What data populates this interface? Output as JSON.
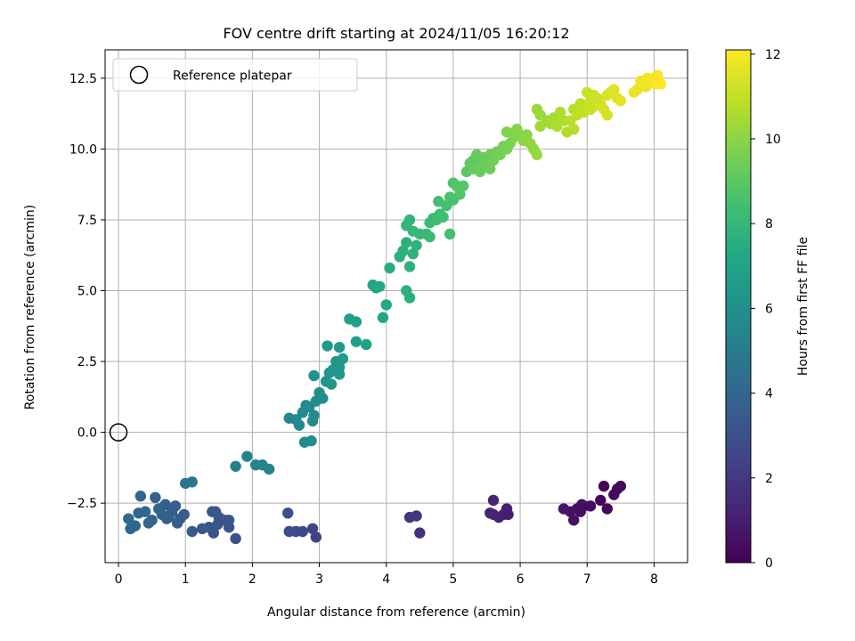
{
  "chart_data": {
    "type": "scatter",
    "title": "FOV centre drift starting at 2024/11/05 16:20:12",
    "xlabel": "Angular distance from reference (arcmin)",
    "ylabel": "Rotation from reference (arcmin)",
    "xlim": [
      -0.2,
      8.5
    ],
    "ylim": [
      -4.6,
      13.5
    ],
    "xticks": [
      0,
      1,
      2,
      3,
      4,
      5,
      6,
      7,
      8
    ],
    "xtick_labels": [
      "0",
      "1",
      "2",
      "3",
      "4",
      "5",
      "6",
      "7",
      "8"
    ],
    "yticks": [
      -2.5,
      0.0,
      2.5,
      5.0,
      7.5,
      10.0,
      12.5
    ],
    "ytick_labels": [
      "−2.5",
      "0.0",
      "2.5",
      "5.0",
      "7.5",
      "10.0",
      "12.5"
    ],
    "grid": true,
    "legend": {
      "position": "top-left",
      "entries": [
        "Reference platepar"
      ]
    },
    "colorbar": {
      "label": "Hours from first FF file",
      "colormap": "viridis",
      "range": [
        0,
        12.1
      ],
      "ticks": [
        0,
        2,
        4,
        6,
        8,
        10,
        12
      ],
      "tick_labels": [
        "0",
        "2",
        "4",
        "6",
        "8",
        "10",
        "12"
      ]
    },
    "reference_point": {
      "x": 0,
      "y": 0
    },
    "points": [
      {
        "x": 7.2,
        "y": -2.4,
        "c": 0.1
      },
      {
        "x": 7.3,
        "y": -2.7,
        "c": 0.2
      },
      {
        "x": 7.25,
        "y": -1.9,
        "c": 0.2
      },
      {
        "x": 7.45,
        "y": -2.0,
        "c": 0.3
      },
      {
        "x": 7.5,
        "y": -1.9,
        "c": 0.3
      },
      {
        "x": 7.4,
        "y": -2.2,
        "c": 0.3
      },
      {
        "x": 6.95,
        "y": -2.6,
        "c": 0.4
      },
      {
        "x": 6.9,
        "y": -2.8,
        "c": 0.5
      },
      {
        "x": 6.85,
        "y": -2.7,
        "c": 0.5
      },
      {
        "x": 6.8,
        "y": -3.1,
        "c": 0.6
      },
      {
        "x": 6.75,
        "y": -2.8,
        "c": 0.6
      },
      {
        "x": 6.65,
        "y": -2.7,
        "c": 0.7
      },
      {
        "x": 6.92,
        "y": -2.55,
        "c": 0.5
      },
      {
        "x": 7.05,
        "y": -2.6,
        "c": 0.4
      },
      {
        "x": 5.8,
        "y": -2.7,
        "c": 1.0
      },
      {
        "x": 5.75,
        "y": -2.9,
        "c": 1.1
      },
      {
        "x": 5.68,
        "y": -3.0,
        "c": 1.1
      },
      {
        "x": 5.6,
        "y": -2.9,
        "c": 1.2
      },
      {
        "x": 5.55,
        "y": -2.85,
        "c": 1.2
      },
      {
        "x": 5.6,
        "y": -2.4,
        "c": 1.2
      },
      {
        "x": 5.82,
        "y": -2.9,
        "c": 1.0
      },
      {
        "x": 4.5,
        "y": -3.55,
        "c": 1.7
      },
      {
        "x": 4.45,
        "y": -2.95,
        "c": 1.8
      },
      {
        "x": 4.35,
        "y": -3.0,
        "c": 1.8
      },
      {
        "x": 2.95,
        "y": -3.7,
        "c": 2.4
      },
      {
        "x": 2.9,
        "y": -3.4,
        "c": 2.5
      },
      {
        "x": 2.75,
        "y": -3.5,
        "c": 2.6
      },
      {
        "x": 2.65,
        "y": -3.5,
        "c": 2.7
      },
      {
        "x": 2.55,
        "y": -3.5,
        "c": 2.8
      },
      {
        "x": 2.53,
        "y": -2.85,
        "c": 2.9
      },
      {
        "x": 1.75,
        "y": -3.75,
        "c": 3.0
      },
      {
        "x": 1.65,
        "y": -3.35,
        "c": 3.1
      },
      {
        "x": 1.6,
        "y": -3.1,
        "c": 3.1
      },
      {
        "x": 1.65,
        "y": -3.1,
        "c": 3.2
      },
      {
        "x": 1.5,
        "y": -3.0,
        "c": 3.2
      },
      {
        "x": 1.45,
        "y": -2.8,
        "c": 3.3
      },
      {
        "x": 1.4,
        "y": -2.8,
        "c": 3.3
      },
      {
        "x": 1.42,
        "y": -3.55,
        "c": 3.2
      },
      {
        "x": 1.35,
        "y": -3.35,
        "c": 3.3
      },
      {
        "x": 1.25,
        "y": -3.4,
        "c": 3.3
      },
      {
        "x": 1.1,
        "y": -3.5,
        "c": 3.4
      },
      {
        "x": 1.48,
        "y": -3.25,
        "c": 3.2
      },
      {
        "x": 0.98,
        "y": -2.9,
        "c": 3.5
      },
      {
        "x": 0.88,
        "y": -3.2,
        "c": 3.5
      },
      {
        "x": 0.85,
        "y": -2.6,
        "c": 3.6
      },
      {
        "x": 0.8,
        "y": -2.8,
        "c": 3.6
      },
      {
        "x": 0.75,
        "y": -3.0,
        "c": 3.7
      },
      {
        "x": 0.7,
        "y": -2.55,
        "c": 3.7
      },
      {
        "x": 0.65,
        "y": -2.9,
        "c": 3.7
      },
      {
        "x": 0.6,
        "y": -2.7,
        "c": 3.8
      },
      {
        "x": 0.55,
        "y": -2.3,
        "c": 3.8
      },
      {
        "x": 0.5,
        "y": -3.1,
        "c": 3.8
      },
      {
        "x": 0.45,
        "y": -3.2,
        "c": 3.9
      },
      {
        "x": 0.4,
        "y": -2.8,
        "c": 3.9
      },
      {
        "x": 0.33,
        "y": -2.25,
        "c": 3.9
      },
      {
        "x": 0.3,
        "y": -2.85,
        "c": 4.0
      },
      {
        "x": 0.25,
        "y": -3.3,
        "c": 4.0
      },
      {
        "x": 0.18,
        "y": -3.4,
        "c": 4.0
      },
      {
        "x": 0.15,
        "y": -3.05,
        "c": 4.1
      },
      {
        "x": 0.72,
        "y": -3.05,
        "c": 3.7
      },
      {
        "x": 0.92,
        "y": -3.05,
        "c": 3.5
      },
      {
        "x": 1.0,
        "y": -1.8,
        "c": 4.7
      },
      {
        "x": 1.1,
        "y": -1.75,
        "c": 4.7
      },
      {
        "x": 1.75,
        "y": -1.2,
        "c": 5.2
      },
      {
        "x": 1.92,
        "y": -0.85,
        "c": 5.3
      },
      {
        "x": 2.05,
        "y": -1.15,
        "c": 5.3
      },
      {
        "x": 2.15,
        "y": -1.15,
        "c": 5.4
      },
      {
        "x": 2.25,
        "y": -1.3,
        "c": 5.4
      },
      {
        "x": 2.55,
        "y": 0.5,
        "c": 5.5
      },
      {
        "x": 2.65,
        "y": 0.45,
        "c": 5.6
      },
      {
        "x": 2.7,
        "y": 0.25,
        "c": 5.6
      },
      {
        "x": 2.75,
        "y": 0.7,
        "c": 5.7
      },
      {
        "x": 2.8,
        "y": 0.95,
        "c": 5.7
      },
      {
        "x": 2.85,
        "y": 0.9,
        "c": 5.8
      },
      {
        "x": 2.9,
        "y": 0.4,
        "c": 5.8
      },
      {
        "x": 2.92,
        "y": 0.6,
        "c": 5.8
      },
      {
        "x": 2.95,
        "y": 1.1,
        "c": 5.9
      },
      {
        "x": 3.0,
        "y": 1.4,
        "c": 5.9
      },
      {
        "x": 3.05,
        "y": 1.2,
        "c": 6.0
      },
      {
        "x": 2.78,
        "y": -0.35,
        "c": 5.8
      },
      {
        "x": 2.88,
        "y": -0.3,
        "c": 5.8
      },
      {
        "x": 2.92,
        "y": 2.0,
        "c": 6.1
      },
      {
        "x": 3.1,
        "y": 1.8,
        "c": 6.2
      },
      {
        "x": 3.15,
        "y": 2.1,
        "c": 6.2
      },
      {
        "x": 3.2,
        "y": 2.2,
        "c": 6.3
      },
      {
        "x": 3.18,
        "y": 1.7,
        "c": 6.3
      },
      {
        "x": 3.25,
        "y": 2.5,
        "c": 6.4
      },
      {
        "x": 3.3,
        "y": 2.3,
        "c": 6.4
      },
      {
        "x": 3.3,
        "y": 2.05,
        "c": 6.4
      },
      {
        "x": 3.35,
        "y": 2.6,
        "c": 6.5
      },
      {
        "x": 3.12,
        "y": 3.05,
        "c": 6.5
      },
      {
        "x": 3.3,
        "y": 3.0,
        "c": 6.6
      },
      {
        "x": 3.45,
        "y": 4.0,
        "c": 6.8
      },
      {
        "x": 3.55,
        "y": 3.9,
        "c": 6.8
      },
      {
        "x": 3.55,
        "y": 3.2,
        "c": 6.8
      },
      {
        "x": 3.7,
        "y": 3.1,
        "c": 6.9
      },
      {
        "x": 3.8,
        "y": 5.2,
        "c": 7.2
      },
      {
        "x": 3.85,
        "y": 5.1,
        "c": 7.2
      },
      {
        "x": 3.9,
        "y": 5.15,
        "c": 7.3
      },
      {
        "x": 3.95,
        "y": 4.05,
        "c": 7.2
      },
      {
        "x": 4.0,
        "y": 4.5,
        "c": 7.3
      },
      {
        "x": 4.05,
        "y": 5.8,
        "c": 7.5
      },
      {
        "x": 4.2,
        "y": 6.2,
        "c": 7.6
      },
      {
        "x": 4.25,
        "y": 6.4,
        "c": 7.7
      },
      {
        "x": 4.3,
        "y": 6.7,
        "c": 7.7
      },
      {
        "x": 4.3,
        "y": 5.0,
        "c": 7.6
      },
      {
        "x": 4.35,
        "y": 4.75,
        "c": 7.6
      },
      {
        "x": 4.35,
        "y": 5.85,
        "c": 7.7
      },
      {
        "x": 4.4,
        "y": 6.3,
        "c": 7.8
      },
      {
        "x": 4.45,
        "y": 6.6,
        "c": 7.8
      },
      {
        "x": 4.3,
        "y": 7.3,
        "c": 7.9
      },
      {
        "x": 4.35,
        "y": 7.5,
        "c": 7.9
      },
      {
        "x": 4.4,
        "y": 7.1,
        "c": 8.0
      },
      {
        "x": 4.5,
        "y": 7.0,
        "c": 8.0
      },
      {
        "x": 4.6,
        "y": 7.0,
        "c": 8.1
      },
      {
        "x": 4.65,
        "y": 6.9,
        "c": 8.1
      },
      {
        "x": 4.65,
        "y": 7.4,
        "c": 8.2
      },
      {
        "x": 4.7,
        "y": 7.55,
        "c": 8.2
      },
      {
        "x": 4.75,
        "y": 7.5,
        "c": 8.3
      },
      {
        "x": 4.8,
        "y": 7.7,
        "c": 8.3
      },
      {
        "x": 4.85,
        "y": 7.6,
        "c": 8.4
      },
      {
        "x": 4.78,
        "y": 8.15,
        "c": 8.4
      },
      {
        "x": 4.9,
        "y": 8.0,
        "c": 8.5
      },
      {
        "x": 4.95,
        "y": 7.0,
        "c": 8.5
      },
      {
        "x": 4.95,
        "y": 8.3,
        "c": 8.6
      },
      {
        "x": 5.0,
        "y": 8.2,
        "c": 8.6
      },
      {
        "x": 5.0,
        "y": 8.8,
        "c": 8.7
      },
      {
        "x": 5.1,
        "y": 8.4,
        "c": 8.8
      },
      {
        "x": 5.1,
        "y": 8.6,
        "c": 8.8
      },
      {
        "x": 5.15,
        "y": 8.7,
        "c": 8.9
      },
      {
        "x": 5.05,
        "y": 8.7,
        "c": 8.8
      },
      {
        "x": 5.2,
        "y": 9.2,
        "c": 9.0
      },
      {
        "x": 5.25,
        "y": 9.5,
        "c": 9.1
      },
      {
        "x": 5.3,
        "y": 9.6,
        "c": 9.1
      },
      {
        "x": 5.3,
        "y": 9.3,
        "c": 9.2
      },
      {
        "x": 5.35,
        "y": 9.8,
        "c": 9.2
      },
      {
        "x": 5.4,
        "y": 9.4,
        "c": 9.3
      },
      {
        "x": 5.4,
        "y": 9.2,
        "c": 9.3
      },
      {
        "x": 5.45,
        "y": 9.7,
        "c": 9.3
      },
      {
        "x": 5.5,
        "y": 9.5,
        "c": 9.4
      },
      {
        "x": 5.55,
        "y": 9.3,
        "c": 9.4
      },
      {
        "x": 5.55,
        "y": 9.8,
        "c": 9.4
      },
      {
        "x": 5.6,
        "y": 9.6,
        "c": 9.5
      },
      {
        "x": 5.65,
        "y": 9.9,
        "c": 9.5
      },
      {
        "x": 5.7,
        "y": 9.8,
        "c": 9.6
      },
      {
        "x": 5.75,
        "y": 10.1,
        "c": 9.6
      },
      {
        "x": 5.8,
        "y": 10.0,
        "c": 9.7
      },
      {
        "x": 5.85,
        "y": 10.2,
        "c": 9.7
      },
      {
        "x": 5.9,
        "y": 10.4,
        "c": 9.8
      },
      {
        "x": 5.8,
        "y": 10.6,
        "c": 9.8
      },
      {
        "x": 5.95,
        "y": 10.7,
        "c": 9.9
      },
      {
        "x": 6.0,
        "y": 10.5,
        "c": 9.9
      },
      {
        "x": 6.05,
        "y": 10.3,
        "c": 10.0
      },
      {
        "x": 6.1,
        "y": 10.5,
        "c": 10.0
      },
      {
        "x": 6.15,
        "y": 10.2,
        "c": 10.1
      },
      {
        "x": 6.2,
        "y": 10.0,
        "c": 10.1
      },
      {
        "x": 6.25,
        "y": 9.8,
        "c": 10.2
      },
      {
        "x": 6.25,
        "y": 11.4,
        "c": 10.3
      },
      {
        "x": 6.3,
        "y": 11.2,
        "c": 10.3
      },
      {
        "x": 6.3,
        "y": 10.8,
        "c": 10.4
      },
      {
        "x": 6.4,
        "y": 11.0,
        "c": 10.4
      },
      {
        "x": 6.45,
        "y": 10.9,
        "c": 10.5
      },
      {
        "x": 6.5,
        "y": 11.1,
        "c": 10.5
      },
      {
        "x": 6.55,
        "y": 10.8,
        "c": 10.6
      },
      {
        "x": 6.6,
        "y": 11.3,
        "c": 10.6
      },
      {
        "x": 6.65,
        "y": 11.0,
        "c": 10.7
      },
      {
        "x": 6.7,
        "y": 10.6,
        "c": 10.7
      },
      {
        "x": 6.75,
        "y": 11.0,
        "c": 10.8
      },
      {
        "x": 6.8,
        "y": 11.4,
        "c": 10.8
      },
      {
        "x": 6.8,
        "y": 10.7,
        "c": 10.8
      },
      {
        "x": 6.85,
        "y": 11.2,
        "c": 10.9
      },
      {
        "x": 6.9,
        "y": 11.6,
        "c": 10.9
      },
      {
        "x": 6.95,
        "y": 11.3,
        "c": 11.0
      },
      {
        "x": 7.0,
        "y": 11.4,
        "c": 11.0
      },
      {
        "x": 7.0,
        "y": 12.0,
        "c": 11.1
      },
      {
        "x": 7.05,
        "y": 11.7,
        "c": 11.1
      },
      {
        "x": 7.1,
        "y": 11.5,
        "c": 11.2
      },
      {
        "x": 7.15,
        "y": 11.8,
        "c": 11.2
      },
      {
        "x": 7.2,
        "y": 11.6,
        "c": 11.3
      },
      {
        "x": 7.25,
        "y": 11.4,
        "c": 11.3
      },
      {
        "x": 7.3,
        "y": 11.2,
        "c": 11.3
      },
      {
        "x": 7.3,
        "y": 11.9,
        "c": 11.4
      },
      {
        "x": 7.35,
        "y": 12.0,
        "c": 11.4
      },
      {
        "x": 7.4,
        "y": 12.1,
        "c": 11.5
      },
      {
        "x": 7.45,
        "y": 11.8,
        "c": 11.5
      },
      {
        "x": 7.5,
        "y": 11.7,
        "c": 11.6
      },
      {
        "x": 7.05,
        "y": 11.4,
        "c": 11.1
      },
      {
        "x": 7.1,
        "y": 11.9,
        "c": 11.2
      },
      {
        "x": 7.7,
        "y": 12.0,
        "c": 11.7
      },
      {
        "x": 7.75,
        "y": 12.1,
        "c": 11.7
      },
      {
        "x": 7.8,
        "y": 12.4,
        "c": 11.8
      },
      {
        "x": 7.85,
        "y": 12.3,
        "c": 11.8
      },
      {
        "x": 7.9,
        "y": 12.5,
        "c": 11.9
      },
      {
        "x": 7.95,
        "y": 12.4,
        "c": 11.9
      },
      {
        "x": 8.0,
        "y": 12.5,
        "c": 12.0
      },
      {
        "x": 8.02,
        "y": 12.3,
        "c": 12.0
      },
      {
        "x": 8.05,
        "y": 12.6,
        "c": 12.0
      },
      {
        "x": 8.1,
        "y": 12.3,
        "c": 12.1
      },
      {
        "x": 7.88,
        "y": 12.2,
        "c": 11.8
      }
    ]
  }
}
